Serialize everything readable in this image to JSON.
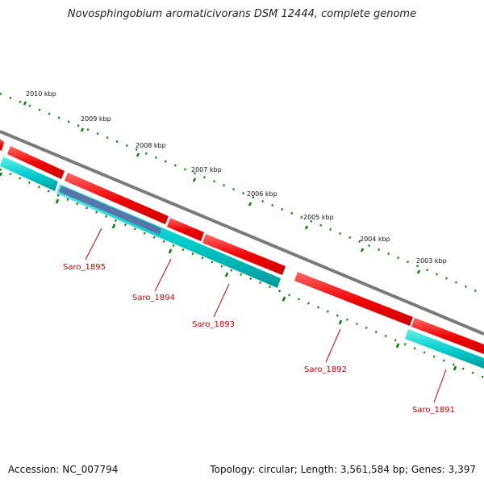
{
  "title": "Novosphingobium aromaticivorans DSM 12444, complete genome",
  "footer": {
    "accession": "Accession: NC_007794",
    "topology": "Topology: circular; Length: 3,561,584 bp; Genes: 3,397"
  },
  "ruler": {
    "labels": [
      "2010 kbp",
      "2009 kbp",
      "2008 kbp",
      "2007 kbp",
      "2006 kbp",
      "2005 kbp",
      "2004 kbp",
      "2003 kbp"
    ]
  },
  "genes": [
    "Saro_1895",
    "Saro_1894",
    "Saro_1893",
    "Saro_1892",
    "Saro_1891"
  ],
  "colors": {
    "backbone": "#808080",
    "forward_gene": "#ff0000",
    "reverse_gene": "#00cccc",
    "highlight_gene": "#5577aa",
    "ticks": "#008000",
    "gene_label": "#cc0000"
  }
}
